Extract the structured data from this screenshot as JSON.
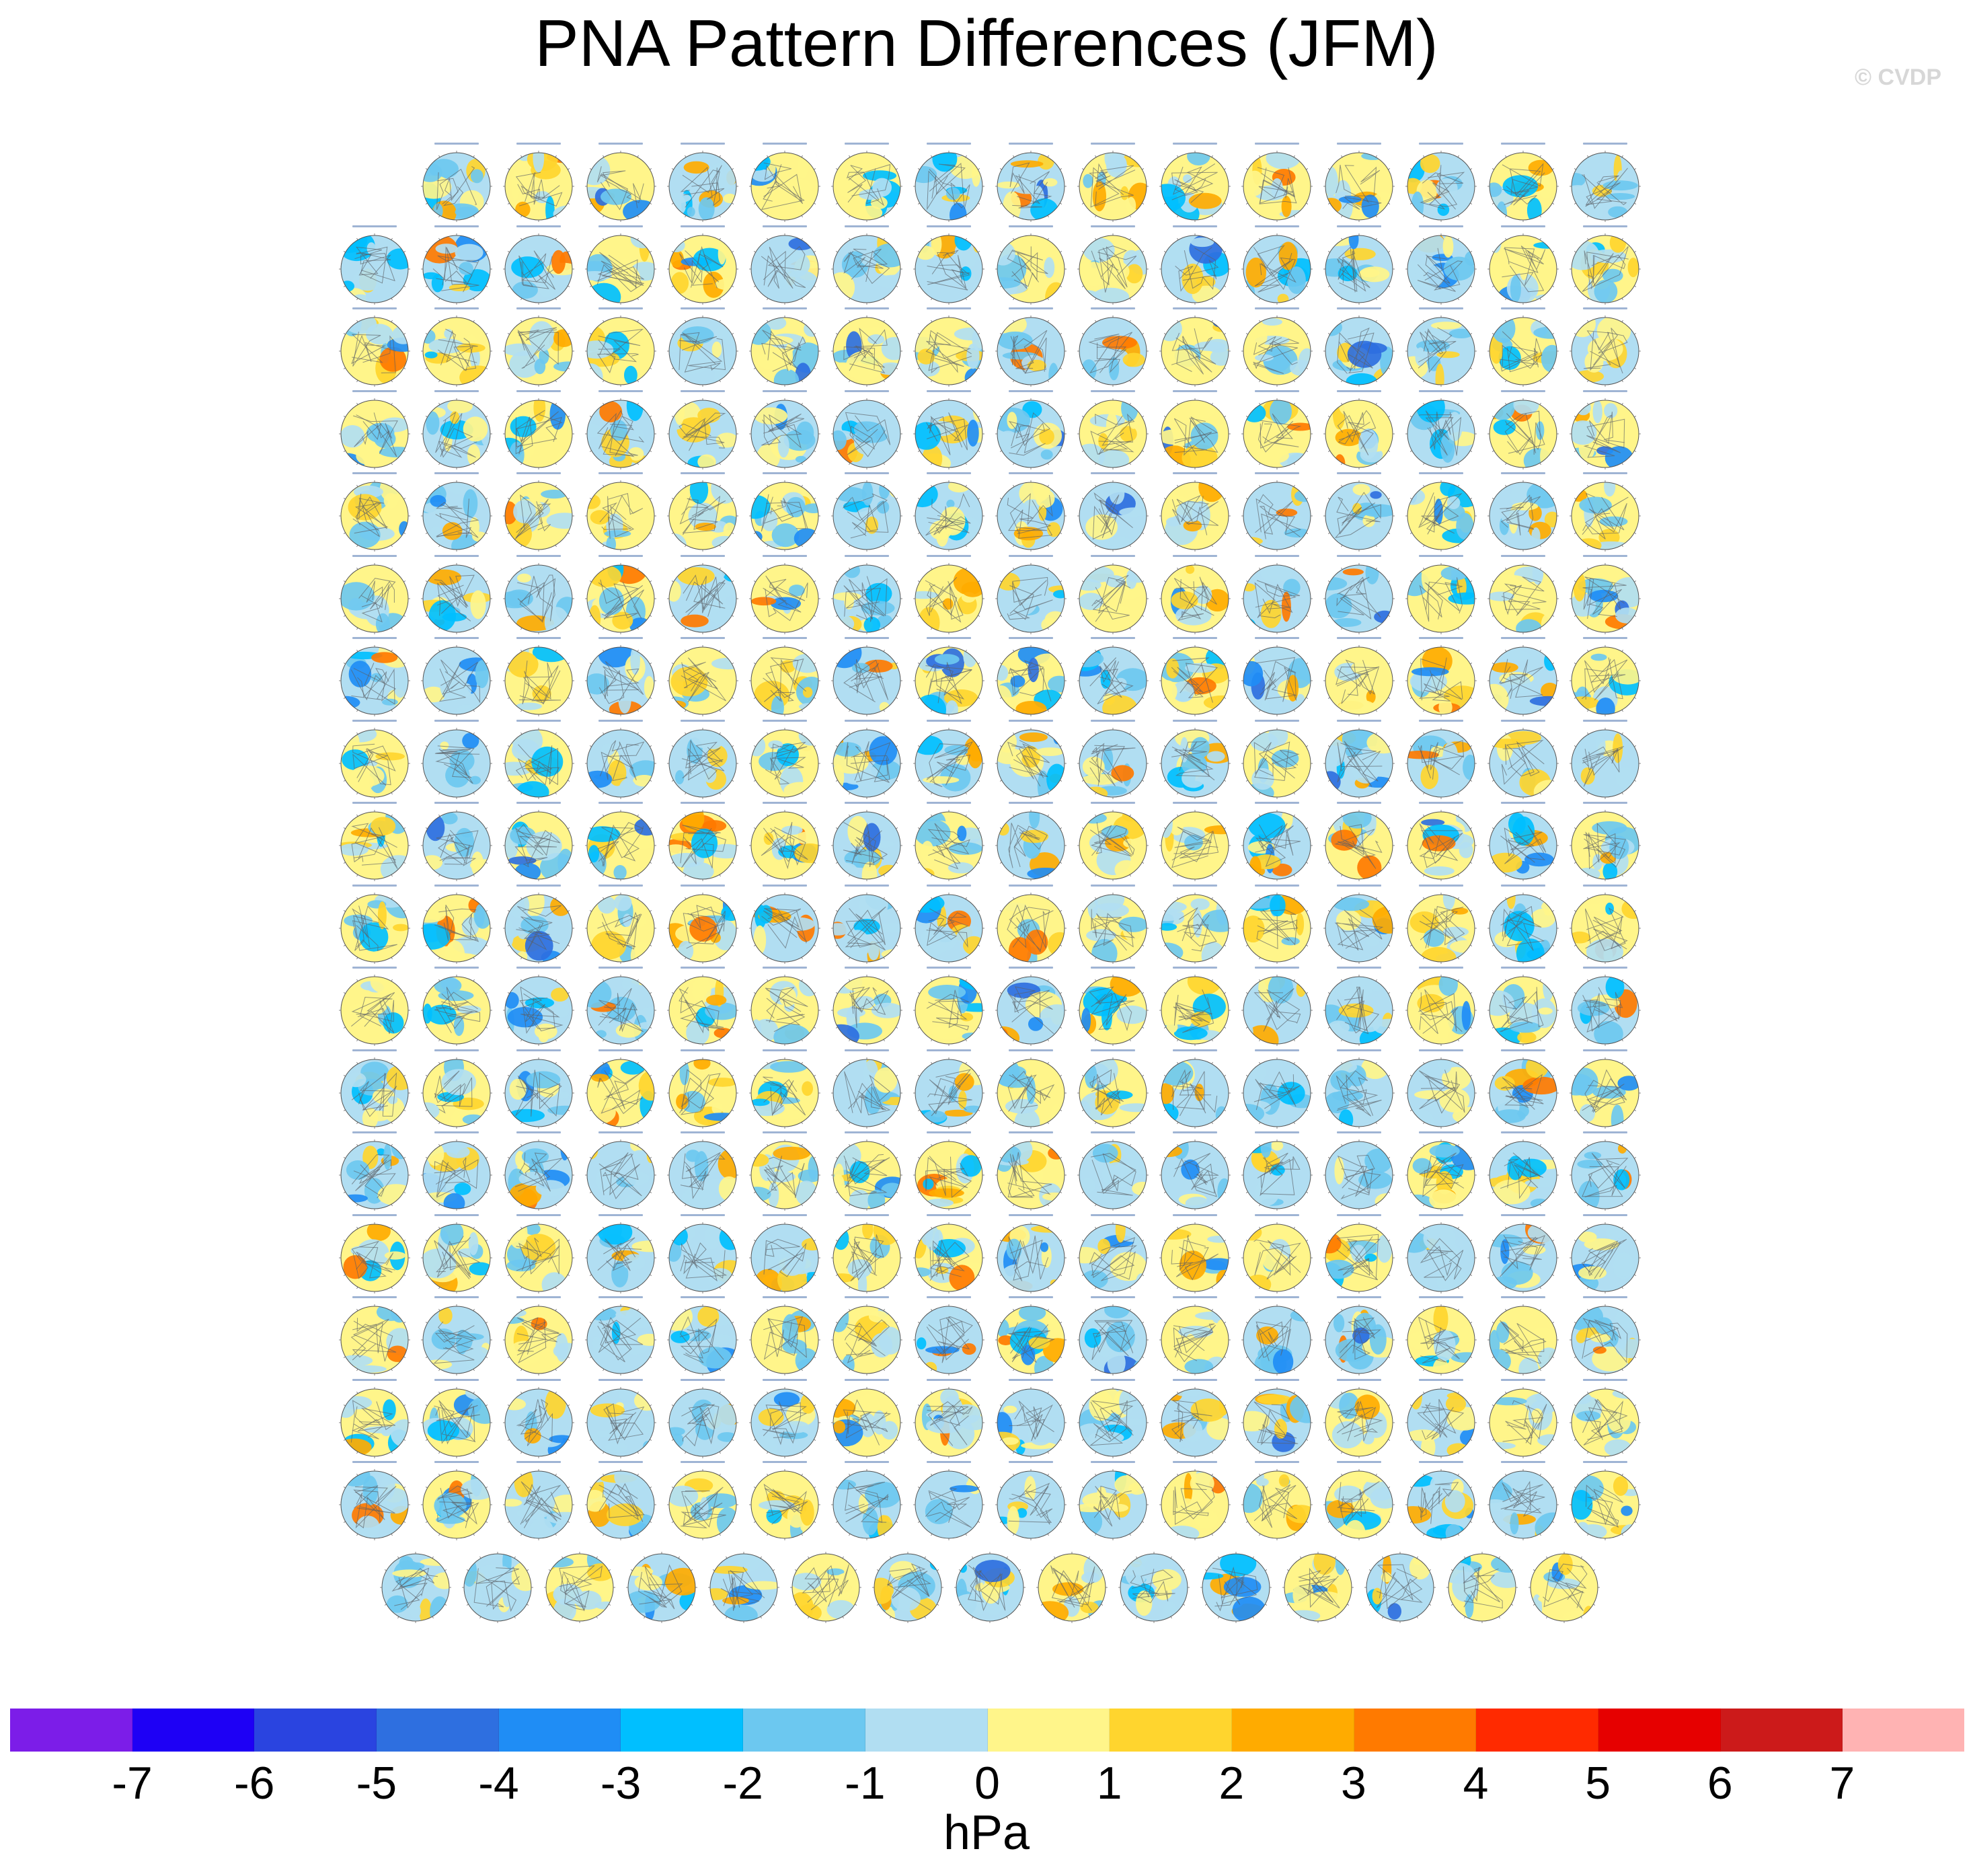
{
  "title": "PNA Pattern Differences (JFM)",
  "watermark": "© CVDP",
  "chart_data": {
    "type": "heatmap",
    "title": "PNA Pattern Differences (JFM)",
    "description_panels": "grid of Northern Hemisphere polar-stereographic difference maps",
    "panel_rows": [
      15,
      16,
      16,
      16,
      16,
      16,
      16,
      16,
      16,
      16,
      16,
      16,
      16,
      16,
      16,
      16,
      16,
      15
    ],
    "panel_count": 286,
    "colorbar": {
      "units": "hPa",
      "tick_labels": [
        "-7",
        "-6",
        "-5",
        "-4",
        "-3",
        "-2",
        "-1",
        "0",
        "1",
        "2",
        "3",
        "4",
        "5",
        "6",
        "7"
      ],
      "levels": [
        -7,
        -6,
        -5,
        -4,
        -3,
        -2,
        -1,
        0,
        1,
        2,
        3,
        4,
        5,
        6,
        7
      ],
      "colors": [
        "#7c1de8",
        "#1e00f5",
        "#2a44e0",
        "#2e6fe0",
        "#1f8df5",
        "#00bfff",
        "#6cc8f0",
        "#b1def2",
        "#fff58a",
        "#ffd52e",
        "#ffab00",
        "#ff7a00",
        "#ff2a00",
        "#e60000",
        "#cc1a1a",
        "#ffb3b3"
      ]
    }
  },
  "legend": {
    "units_label": "hPa"
  }
}
